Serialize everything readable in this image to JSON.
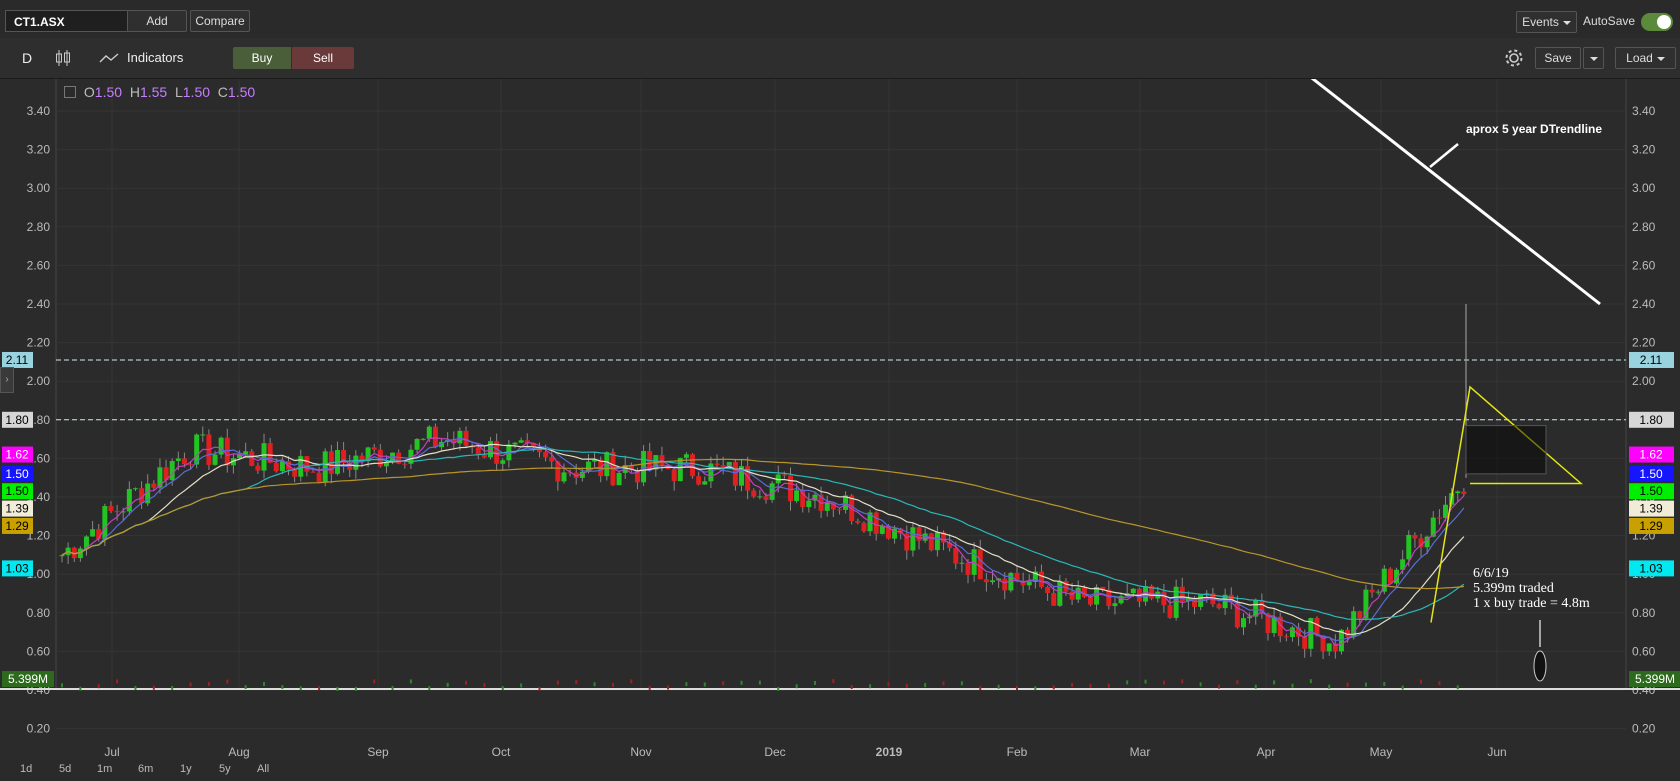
{
  "header": {
    "symbol": "CT1.ASX",
    "add_label": "Add",
    "compare_label": "Compare",
    "events_label": "Events",
    "autosave_label": "AutoSave"
  },
  "toolbar": {
    "interval": "D",
    "indicators_label": "Indicators",
    "buy_label": "Buy",
    "sell_label": "Sell",
    "save_label": "Save",
    "load_label": "Load"
  },
  "legend": {
    "o_label": "O",
    "o_value": "1.50",
    "h_label": "H",
    "h_value": "1.55",
    "l_label": "L",
    "l_value": "1.50",
    "c_label": "C",
    "c_value": "1.50"
  },
  "y_ticks": [
    "3.40",
    "3.20",
    "3.00",
    "2.80",
    "2.60",
    "2.40",
    "2.20",
    "2.00",
    "1.80",
    "1.60",
    "1.40",
    "1.20",
    "1.00",
    "0.80",
    "0.60",
    "0.40",
    "0.20"
  ],
  "x_ticks": [
    "Jul",
    "Aug",
    "Sep",
    "Oct",
    "Nov",
    "Dec",
    "2019",
    "Feb",
    "Mar",
    "Apr",
    "May",
    "Jun"
  ],
  "price_tags": [
    {
      "id": "tag-2-11",
      "value": "2.11",
      "color": "#9ad3e0",
      "text_color": "#000000"
    },
    {
      "id": "tag-1-80",
      "value": "1.80",
      "color": "#d6d6d6",
      "text_color": "#000000"
    },
    {
      "id": "tag-1-62",
      "value": "1.62",
      "color": "#ff00ff",
      "text_color": "#ffffff"
    },
    {
      "id": "tag-1-50b",
      "value": "1.50",
      "color": "#1515ff",
      "text_color": "#ffffff"
    },
    {
      "id": "tag-1-50g",
      "value": "1.50",
      "color": "#00ee00",
      "text_color": "#000000"
    },
    {
      "id": "tag-1-39",
      "value": "1.39",
      "color": "#f1ecd7",
      "text_color": "#000000"
    },
    {
      "id": "tag-1-29",
      "value": "1.29",
      "color": "#c8a000",
      "text_color": "#000000"
    },
    {
      "id": "tag-1-03",
      "value": "1.03",
      "color": "#00e8f0",
      "text_color": "#000000"
    }
  ],
  "volume_tag": "5.399M",
  "annotations": {
    "trendline": "aprox 5 year DTrendline",
    "note_line1": "6/6/19",
    "note_line2": "5.399m traded",
    "note_line3": "1 x buy trade = 4.8m"
  },
  "periods": [
    "1d",
    "5d",
    "1m",
    "6m",
    "1y",
    "5y",
    "All"
  ],
  "chart_data": {
    "type": "candlestick",
    "symbol": "CT1.ASX",
    "interval": "D",
    "ylim": [
      0.2,
      3.4
    ],
    "horizontal_levels": [
      2.11,
      1.8
    ],
    "indicator_last_values": {
      "ma_magenta": 1.62,
      "ma_blue": 1.5,
      "ma_cream": 1.39,
      "ma_gold": 1.29,
      "ma_cyan": 1.03
    },
    "last": {
      "open": 1.5,
      "high": 1.55,
      "low": 1.5,
      "close": 1.5
    },
    "last_volume": "5.399M",
    "close_series": [
      {
        "x": "Jul",
        "close": 1.1
      },
      {
        "x": "Aug",
        "close": 1.65
      },
      {
        "x": "Sep",
        "close": 1.55
      },
      {
        "x": "Oct",
        "close": 1.7
      },
      {
        "x": "Nov",
        "close": 1.55
      },
      {
        "x": "Dec",
        "close": 1.55
      },
      {
        "x": "2019",
        "close": 1.4
      },
      {
        "x": "Feb",
        "close": 1.1
      },
      {
        "x": "Mar",
        "close": 0.85
      },
      {
        "x": "Apr",
        "close": 0.85
      },
      {
        "x": "May",
        "close": 0.65
      },
      {
        "x": "Jun",
        "close": 1.5
      }
    ]
  }
}
